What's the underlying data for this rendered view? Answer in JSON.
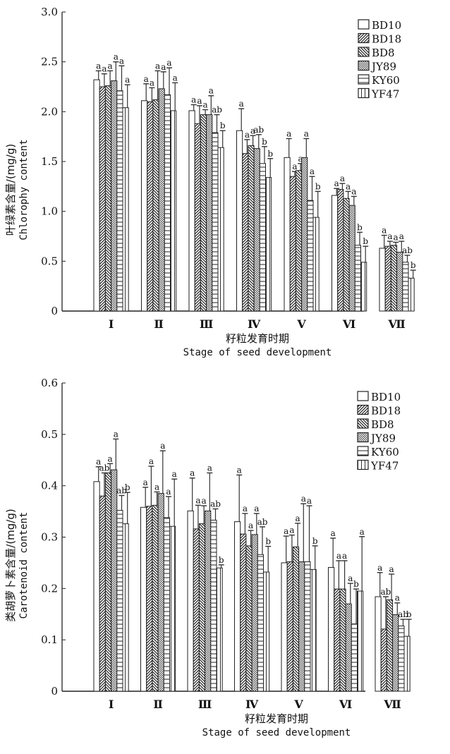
{
  "chart_data": [
    {
      "type": "bar",
      "title": "",
      "ylabel_cn": "叶绿素含量/(mg/g)",
      "ylabel_en": "Chlorophy content",
      "xlabel_cn": "籽粒发育时期",
      "xlabel_en": "Stage of seed development",
      "ylim": [
        0,
        3.0
      ],
      "yticks": [
        0,
        0.5,
        1.0,
        1.5,
        2.0,
        2.5,
        3.0
      ],
      "ytick_labels": [
        "0",
        "0.5",
        "1.0",
        "1.5",
        "2.0",
        "2.5",
        "3.0"
      ],
      "categories": [
        "Ⅰ",
        "Ⅱ",
        "Ⅲ",
        "Ⅳ",
        "Ⅴ",
        "Ⅵ",
        "Ⅶ"
      ],
      "legend_position": "top-right",
      "grid": false,
      "series": [
        {
          "name": "BD10",
          "pattern": "blank",
          "values": [
            2.32,
            2.11,
            2.01,
            1.81,
            1.54,
            1.16,
            0.63
          ],
          "errors": [
            0.09,
            0.17,
            0.06,
            0.22,
            0.19,
            0.07,
            0.13
          ],
          "sig": [
            "a",
            "a",
            "a",
            "a",
            "a",
            "a",
            "a"
          ]
        },
        {
          "name": "BD18",
          "pattern": "forward-diagonal",
          "values": [
            2.25,
            2.1,
            1.88,
            1.58,
            1.35,
            1.22,
            0.65
          ],
          "errors": [
            0.13,
            0.14,
            0.18,
            0.14,
            0.05,
            0.06,
            0.05
          ],
          "sig": [
            "a",
            "a",
            "a",
            "a",
            "a",
            "a",
            "a"
          ]
        },
        {
          "name": "BD8",
          "pattern": "backward-diagonal",
          "values": [
            2.26,
            2.12,
            1.97,
            1.66,
            1.41,
            1.13,
            0.66
          ],
          "errors": [
            0.15,
            0.29,
            0.05,
            0.1,
            0.07,
            0.07,
            0.03
          ],
          "sig": [
            "a",
            "a",
            "a",
            "a",
            "a",
            "a",
            "a"
          ]
        },
        {
          "name": "JY89",
          "pattern": "checker",
          "values": [
            2.31,
            2.23,
            1.97,
            1.63,
            1.54,
            1.06,
            0.59
          ],
          "errors": [
            0.19,
            0.17,
            0.19,
            0.14,
            0.19,
            0.09,
            0.11
          ],
          "sig": [
            "a",
            "a",
            "a",
            "ab",
            "a",
            "a",
            "a"
          ]
        },
        {
          "name": "KY60",
          "pattern": "horizontal",
          "values": [
            2.21,
            2.17,
            1.79,
            1.48,
            1.11,
            0.66,
            0.49
          ],
          "errors": [
            0.25,
            0.27,
            0.18,
            0.17,
            0.24,
            0.13,
            0.07
          ],
          "sig": [
            "a",
            "a",
            "ab",
            "b",
            "a",
            "b",
            "ab"
          ]
        },
        {
          "name": "YF47",
          "pattern": "vertical",
          "values": [
            2.04,
            2.01,
            1.64,
            1.34,
            0.94,
            0.49,
            0.33
          ],
          "errors": [
            0.23,
            0.28,
            0.17,
            0.19,
            0.26,
            0.16,
            0.08
          ],
          "sig": [
            "a",
            "a",
            "b",
            "b",
            "b",
            "b",
            "b"
          ]
        }
      ]
    },
    {
      "type": "bar",
      "title": "",
      "ylabel_cn": "类胡萝卜素含量/(mg/g)",
      "ylabel_en": "Carotenoid content",
      "xlabel_cn": "籽粒发育时期",
      "xlabel_en": "Stage of seed development",
      "ylim": [
        0,
        0.6
      ],
      "yticks": [
        0,
        0.1,
        0.2,
        0.3,
        0.4,
        0.5,
        0.6
      ],
      "ytick_labels": [
        "0",
        "0.1",
        "0.2",
        "0.3",
        "0.4",
        "0.5",
        "0.6"
      ],
      "categories": [
        "Ⅰ",
        "Ⅱ",
        "Ⅲ",
        "Ⅳ",
        "Ⅴ",
        "Ⅵ",
        "Ⅶ"
      ],
      "legend_position": "top-right",
      "grid": false,
      "series": [
        {
          "name": "BD10",
          "pattern": "blank",
          "values": [
            0.408,
            0.358,
            0.351,
            0.33,
            0.25,
            0.241,
            0.184
          ],
          "errors": [
            0.029,
            0.039,
            0.064,
            0.091,
            0.052,
            0.057,
            0.047
          ],
          "sig": [
            "a",
            "a",
            "a",
            "a",
            "a",
            "a",
            "a"
          ]
        },
        {
          "name": "BD18",
          "pattern": "forward-diagonal",
          "values": [
            0.38,
            0.36,
            0.316,
            0.306,
            0.252,
            0.199,
            0.121
          ],
          "errors": [
            0.045,
            0.078,
            0.046,
            0.04,
            0.052,
            0.055,
            0.063
          ],
          "sig": [
            "ab",
            "a",
            "a",
            "a",
            "a",
            "a",
            "ab"
          ]
        },
        {
          "name": "BD8",
          "pattern": "backward-diagonal",
          "values": [
            0.425,
            0.362,
            0.326,
            0.283,
            0.281,
            0.199,
            0.178
          ],
          "errors": [
            0.018,
            0.026,
            0.035,
            0.03,
            0.046,
            0.055,
            0.05
          ],
          "sig": [
            "a",
            "a",
            "a",
            "a",
            "a",
            "a",
            "a"
          ]
        },
        {
          "name": "JY89",
          "pattern": "checker",
          "values": [
            0.431,
            0.385,
            0.351,
            0.305,
            0.252,
            0.17,
            0.149
          ],
          "errors": [
            0.06,
            0.083,
            0.074,
            0.041,
            0.113,
            0.04,
            0.023
          ],
          "sig": [
            "a",
            "a",
            "a",
            "a",
            "a",
            "a",
            "a"
          ]
        },
        {
          "name": "KY60",
          "pattern": "horizontal",
          "values": [
            0.352,
            0.338,
            0.333,
            0.266,
            0.252,
            0.131,
            0.127
          ],
          "errors": [
            0.029,
            0.041,
            0.022,
            0.054,
            0.109,
            0.068,
            0.013
          ],
          "sig": [
            "ab",
            "a",
            "ab",
            "ab",
            "a",
            "b",
            "ab"
          ]
        },
        {
          "name": "YF47",
          "pattern": "vertical",
          "values": [
            0.326,
            0.321,
            0.24,
            0.232,
            0.237,
            0.195,
            0.107
          ],
          "errors": [
            0.061,
            0.092,
            0.006,
            0.05,
            0.046,
            0.106,
            0.033
          ],
          "sig": [
            "b",
            "a",
            "b",
            "b",
            "b",
            "a",
            "b"
          ]
        }
      ]
    }
  ]
}
